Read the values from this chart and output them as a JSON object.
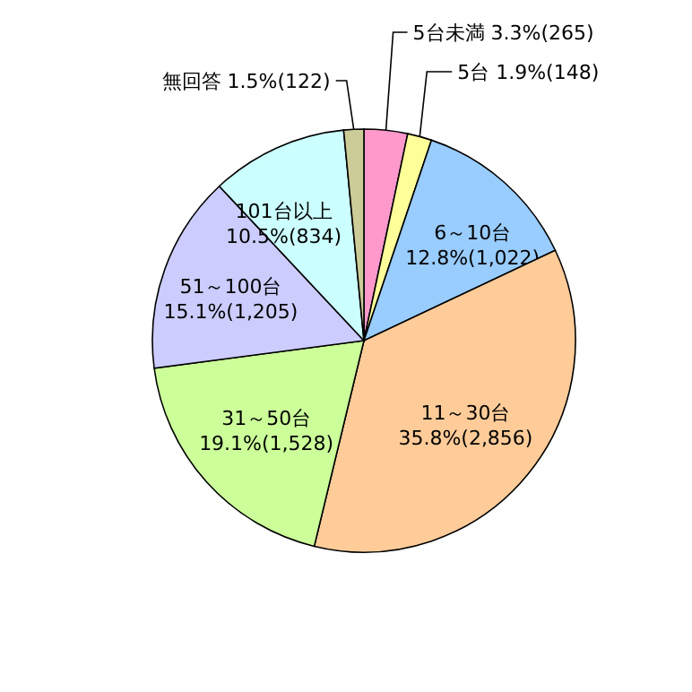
{
  "chart_data": {
    "type": "pie",
    "categories": [
      "5台未満",
      "5台",
      "6～10台",
      "11～30台",
      "31～50台",
      "51～100台",
      "101台以上",
      "無回答"
    ],
    "values": [
      265,
      148,
      1022,
      2856,
      1528,
      1205,
      834,
      122
    ],
    "value_labels": [
      "3.3%(265)",
      "1.9%(148)",
      "12.8%(1,022)",
      "35.8%(2,856)",
      "19.1%(1,528)",
      "15.1%(1,205)",
      "10.5%(834)",
      "1.5%(122)"
    ],
    "colors": [
      "#ff99cc",
      "#ffff99",
      "#99ccff",
      "#ffcc99",
      "#ccff99",
      "#ccccff",
      "#ccffff",
      "#cccc99"
    ]
  }
}
